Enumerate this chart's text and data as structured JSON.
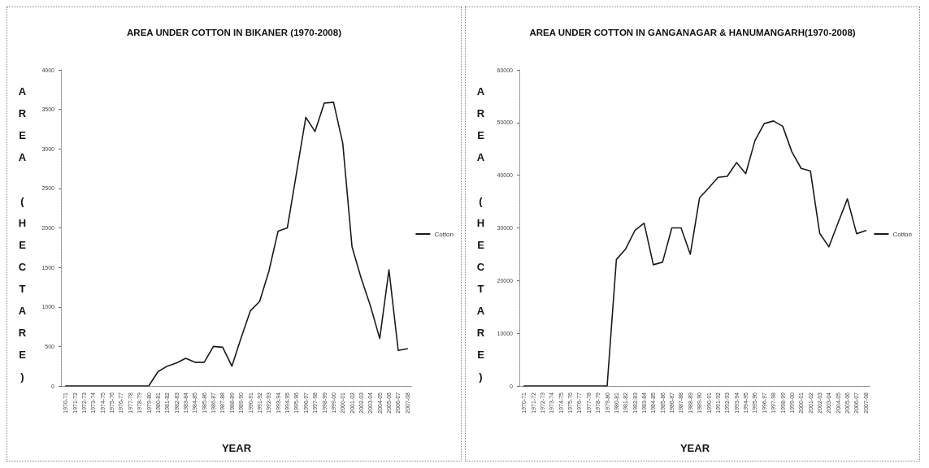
{
  "chart_data": [
    {
      "type": "line",
      "title": "AREA UNDER COTTON IN BIKANER (1970-2008)",
      "xlabel": "YEAR",
      "ylabel": "AREA (HECTARE)",
      "categories": [
        "1970-71",
        "1971-72",
        "1972-73",
        "1973-74",
        "1974-75",
        "1975-76",
        "1976-77",
        "1977-78",
        "1978-79",
        "1979-80",
        "1980-81",
        "1981-82",
        "1982-83",
        "1983-84",
        "1984-85",
        "1985-86",
        "1986-87",
        "1987-88",
        "1988-89",
        "1989-90",
        "1990-91",
        "1991-92",
        "1992-93",
        "1993-94",
        "1994-95",
        "1995-96",
        "1996-97",
        "1997-98",
        "1998-99",
        "1999-00",
        "2000-01",
        "2001-02",
        "2002-03",
        "2003-04",
        "2004-05",
        "2005-06",
        "2006-07",
        "2007-08"
      ],
      "series": [
        {
          "name": "Cotton",
          "color": "#1a1a1a",
          "values": [
            0,
            0,
            0,
            0,
            0,
            0,
            0,
            0,
            0,
            0,
            180,
            250,
            290,
            350,
            300,
            300,
            500,
            490,
            250,
            610,
            950,
            1070,
            1450,
            1960,
            2000,
            2700,
            3400,
            3220,
            3580,
            3590,
            3070,
            1760,
            1360,
            1010,
            600,
            1470,
            450,
            470
          ]
        }
      ],
      "ylim": [
        0,
        4000
      ],
      "yticks": [
        0,
        500,
        1000,
        1500,
        2000,
        2500,
        3000,
        3500,
        4000
      ],
      "grid": false,
      "legend": "right",
      "marker": "none",
      "line_style": "solid"
    },
    {
      "type": "line",
      "title": "AREA UNDER COTTON IN GANGANAGAR & HANUMANGARH(1970-2008)",
      "xlabel": "YEAR",
      "ylabel": "AREA (HECTARE)",
      "categories": [
        "1970-71",
        "1971-72",
        "1972-73",
        "1973-74",
        "1974-75",
        "1975-76",
        "1976-77",
        "1977-78",
        "1978-79",
        "1979-80",
        "1980-81",
        "1981-82",
        "1982-83",
        "1983-84",
        "1984-85",
        "1985-86",
        "1986-87",
        "1987-88",
        "1988-89",
        "1989-90",
        "1990-91",
        "1991-92",
        "1992-93",
        "1993-94",
        "1994-95",
        "1995-96",
        "1996-97",
        "1997-98",
        "1998-99",
        "1999-00",
        "2000-01",
        "2001-02",
        "2002-03",
        "2003-04",
        "2004-05",
        "2005-06",
        "2006-07",
        "2007-08"
      ],
      "series": [
        {
          "name": "Cotton",
          "color": "#1a1a1a",
          "values": [
            0,
            0,
            0,
            0,
            0,
            0,
            0,
            0,
            0,
            0,
            24000,
            26000,
            29500,
            30900,
            23000,
            23500,
            30000,
            30000,
            25000,
            35700,
            37600,
            39600,
            39800,
            42400,
            40300,
            46600,
            49800,
            50300,
            49300,
            44400,
            41300,
            40800,
            29000,
            26400,
            31000,
            35500,
            28900,
            29500
          ]
        }
      ],
      "ylim": [
        0,
        60000
      ],
      "yticks": [
        0,
        10000,
        20000,
        30000,
        40000,
        50000,
        60000
      ],
      "grid": false,
      "legend": "right",
      "marker": "none",
      "line_style": "solid"
    }
  ]
}
